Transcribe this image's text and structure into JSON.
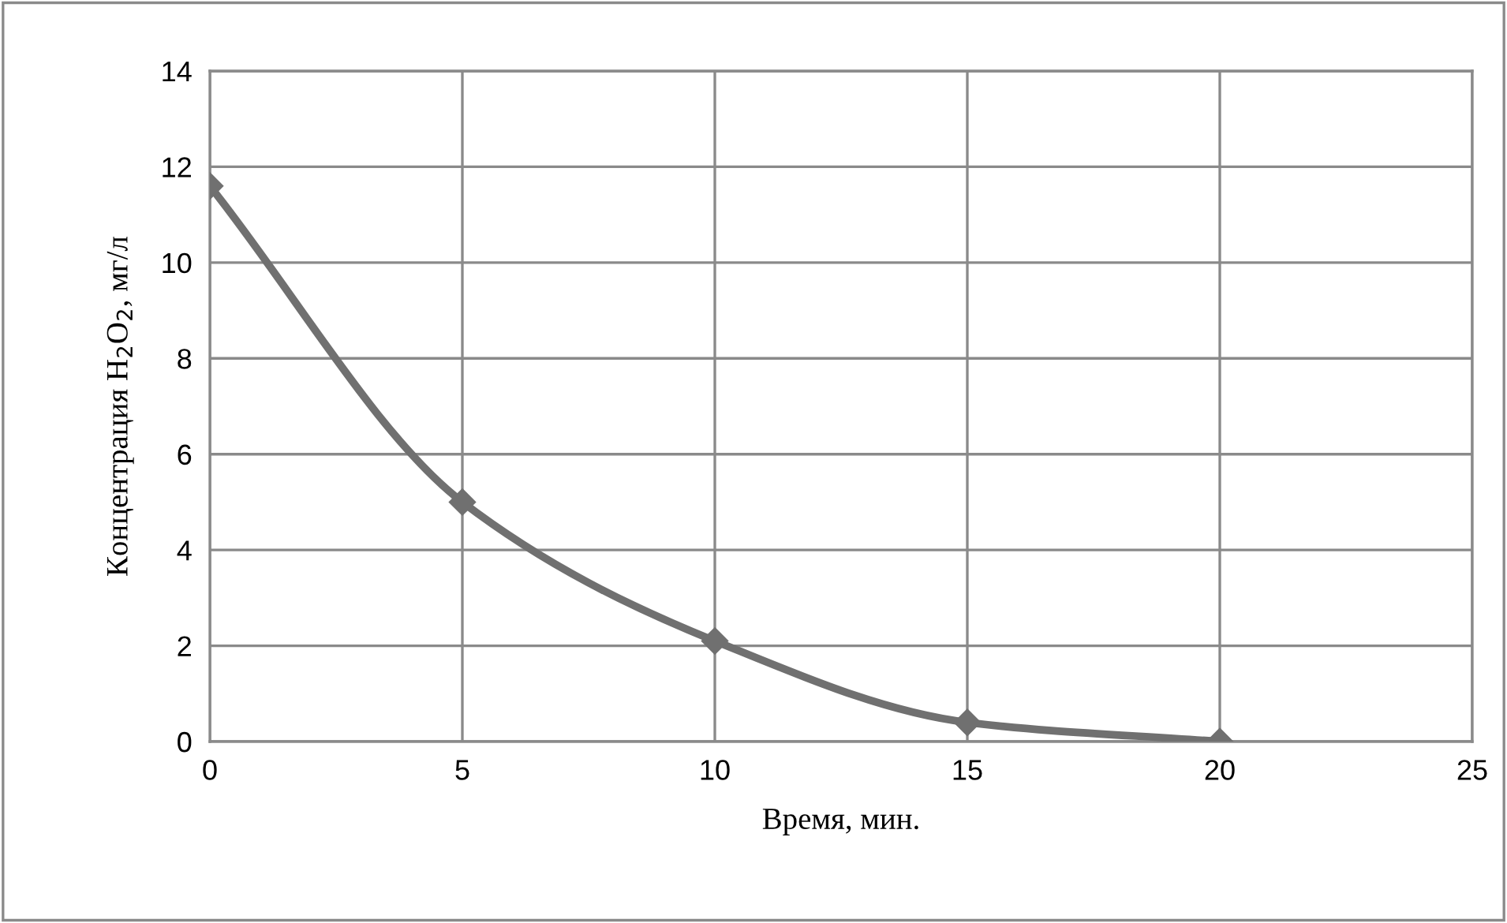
{
  "chart_data": {
    "type": "line",
    "xlabel": "Время, мин.",
    "ylabel": "Концентрация H$_{2}$O$_{2}$, мг/л",
    "x": [
      0,
      5,
      10,
      15,
      20
    ],
    "series": [
      {
        "color": "#707070",
        "values": [
          11.6,
          5.0,
          2.1,
          0.4,
          0.0
        ]
      }
    ],
    "xlim": [
      0,
      25
    ],
    "xticks": [
      0,
      5,
      10,
      15,
      20,
      25
    ],
    "ylim": [
      0,
      14
    ],
    "yticks": [
      0,
      2,
      4,
      6,
      8,
      10,
      12,
      14
    ],
    "grid": true,
    "marker": "diamond",
    "line_style": "solid"
  }
}
